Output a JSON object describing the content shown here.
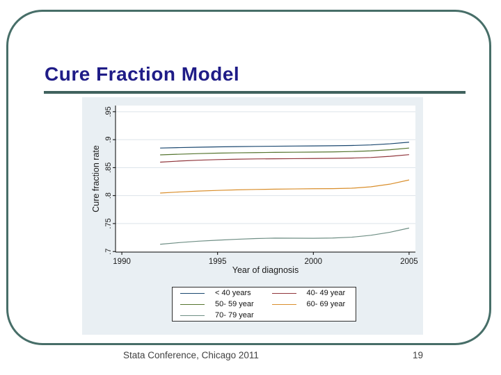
{
  "slide": {
    "title": "Cure Fraction Model",
    "footer": "Stata Conference, Chicago 2011",
    "page_number": "19"
  },
  "colors": {
    "title": "#1f1c87",
    "frame": "#476e68",
    "underline": "#40625e",
    "chart_outer_bg": "#e9eff3",
    "plot_bg": "#ffffff",
    "grid": "#dce3e9",
    "axis": "#000000",
    "tick_text": "#1a1a1a",
    "footer_text": "#414141"
  },
  "chart_data": {
    "type": "line",
    "title": "",
    "xlabel": "Year of diagnosis",
    "ylabel": "Cure fraction rate",
    "xlim": [
      1989.67,
      2005.33
    ],
    "ylim": [
      0.699,
      0.961
    ],
    "xticks": [
      1990,
      1995,
      2000,
      2005
    ],
    "ytick_labels": [
      ".7",
      ".75",
      ".8",
      ".85",
      ".9",
      ".95"
    ],
    "ytick_values": [
      0.7,
      0.75,
      0.8,
      0.85,
      0.9,
      0.95
    ],
    "grid": true,
    "legend_position": "bottom-center",
    "x": [
      1992,
      1993,
      1994,
      1995,
      1996,
      1997,
      1998,
      1999,
      2000,
      2001,
      2002,
      2003,
      2004,
      2005
    ],
    "series": [
      {
        "name": "< 40 years",
        "color": "#1a476f",
        "values": [
          0.885,
          0.8858,
          0.8865,
          0.8871,
          0.8876,
          0.888,
          0.8883,
          0.8886,
          0.8888,
          0.8891,
          0.8896,
          0.8906,
          0.8926,
          0.8955
        ]
      },
      {
        "name": "40- 49 year",
        "color": "#90353b",
        "values": [
          0.8598,
          0.8618,
          0.8633,
          0.8644,
          0.8651,
          0.8656,
          0.8659,
          0.8661,
          0.8663,
          0.8666,
          0.8671,
          0.8681,
          0.8702,
          0.8732
        ]
      },
      {
        "name": "50- 59 year",
        "color": "#55752f",
        "values": [
          0.8728,
          0.874,
          0.8751,
          0.8759,
          0.8765,
          0.8769,
          0.8773,
          0.8776,
          0.8778,
          0.8781,
          0.8788,
          0.88,
          0.882,
          0.885
        ]
      },
      {
        "name": "60- 69 year",
        "color": "#d98e2b",
        "values": [
          0.8045,
          0.8065,
          0.8081,
          0.8093,
          0.8103,
          0.811,
          0.8115,
          0.8119,
          0.8123,
          0.8125,
          0.8132,
          0.8157,
          0.8205,
          0.828
        ]
      },
      {
        "name": "70- 79 year",
        "color": "#6e8e84",
        "values": [
          0.713,
          0.716,
          0.7185,
          0.7203,
          0.7219,
          0.7232,
          0.724,
          0.7238,
          0.7237,
          0.7241,
          0.7256,
          0.729,
          0.7345,
          0.742
        ]
      }
    ]
  }
}
